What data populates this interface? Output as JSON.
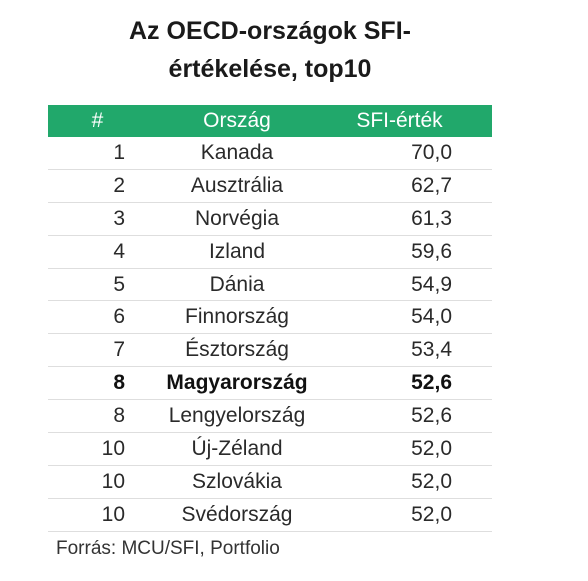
{
  "title": {
    "line1": "Az OECD-országok SFI-",
    "line2": "értékelése, top10"
  },
  "table": {
    "headers": {
      "rank": "#",
      "country": "Ország",
      "value": "SFI-érték"
    },
    "rows": [
      {
        "rank": "1",
        "country": "Kanada",
        "value": "70,0"
      },
      {
        "rank": "2",
        "country": "Ausztrália",
        "value": "62,7"
      },
      {
        "rank": "3",
        "country": "Norvégia",
        "value": "61,3"
      },
      {
        "rank": "4",
        "country": "Izland",
        "value": "59,6"
      },
      {
        "rank": "5",
        "country": "Dánia",
        "value": "54,9"
      },
      {
        "rank": "6",
        "country": "Finnország",
        "value": "54,0"
      },
      {
        "rank": "7",
        "country": "Észtország",
        "value": "53,4"
      },
      {
        "rank": "8",
        "country": "Magyarország",
        "value": "52,6"
      },
      {
        "rank": "8",
        "country": "Lengyelország",
        "value": "52,6"
      },
      {
        "rank": "10",
        "country": "Új-Zéland",
        "value": "52,0"
      },
      {
        "rank": "10",
        "country": "Szlovákia",
        "value": "52,0"
      },
      {
        "rank": "10",
        "country": "Svédország",
        "value": "52,0"
      }
    ],
    "highlighted_row": "Magyarország",
    "header_color": "#21a86b"
  },
  "source": "Forrás: MCU/SFI, Portfolio"
}
